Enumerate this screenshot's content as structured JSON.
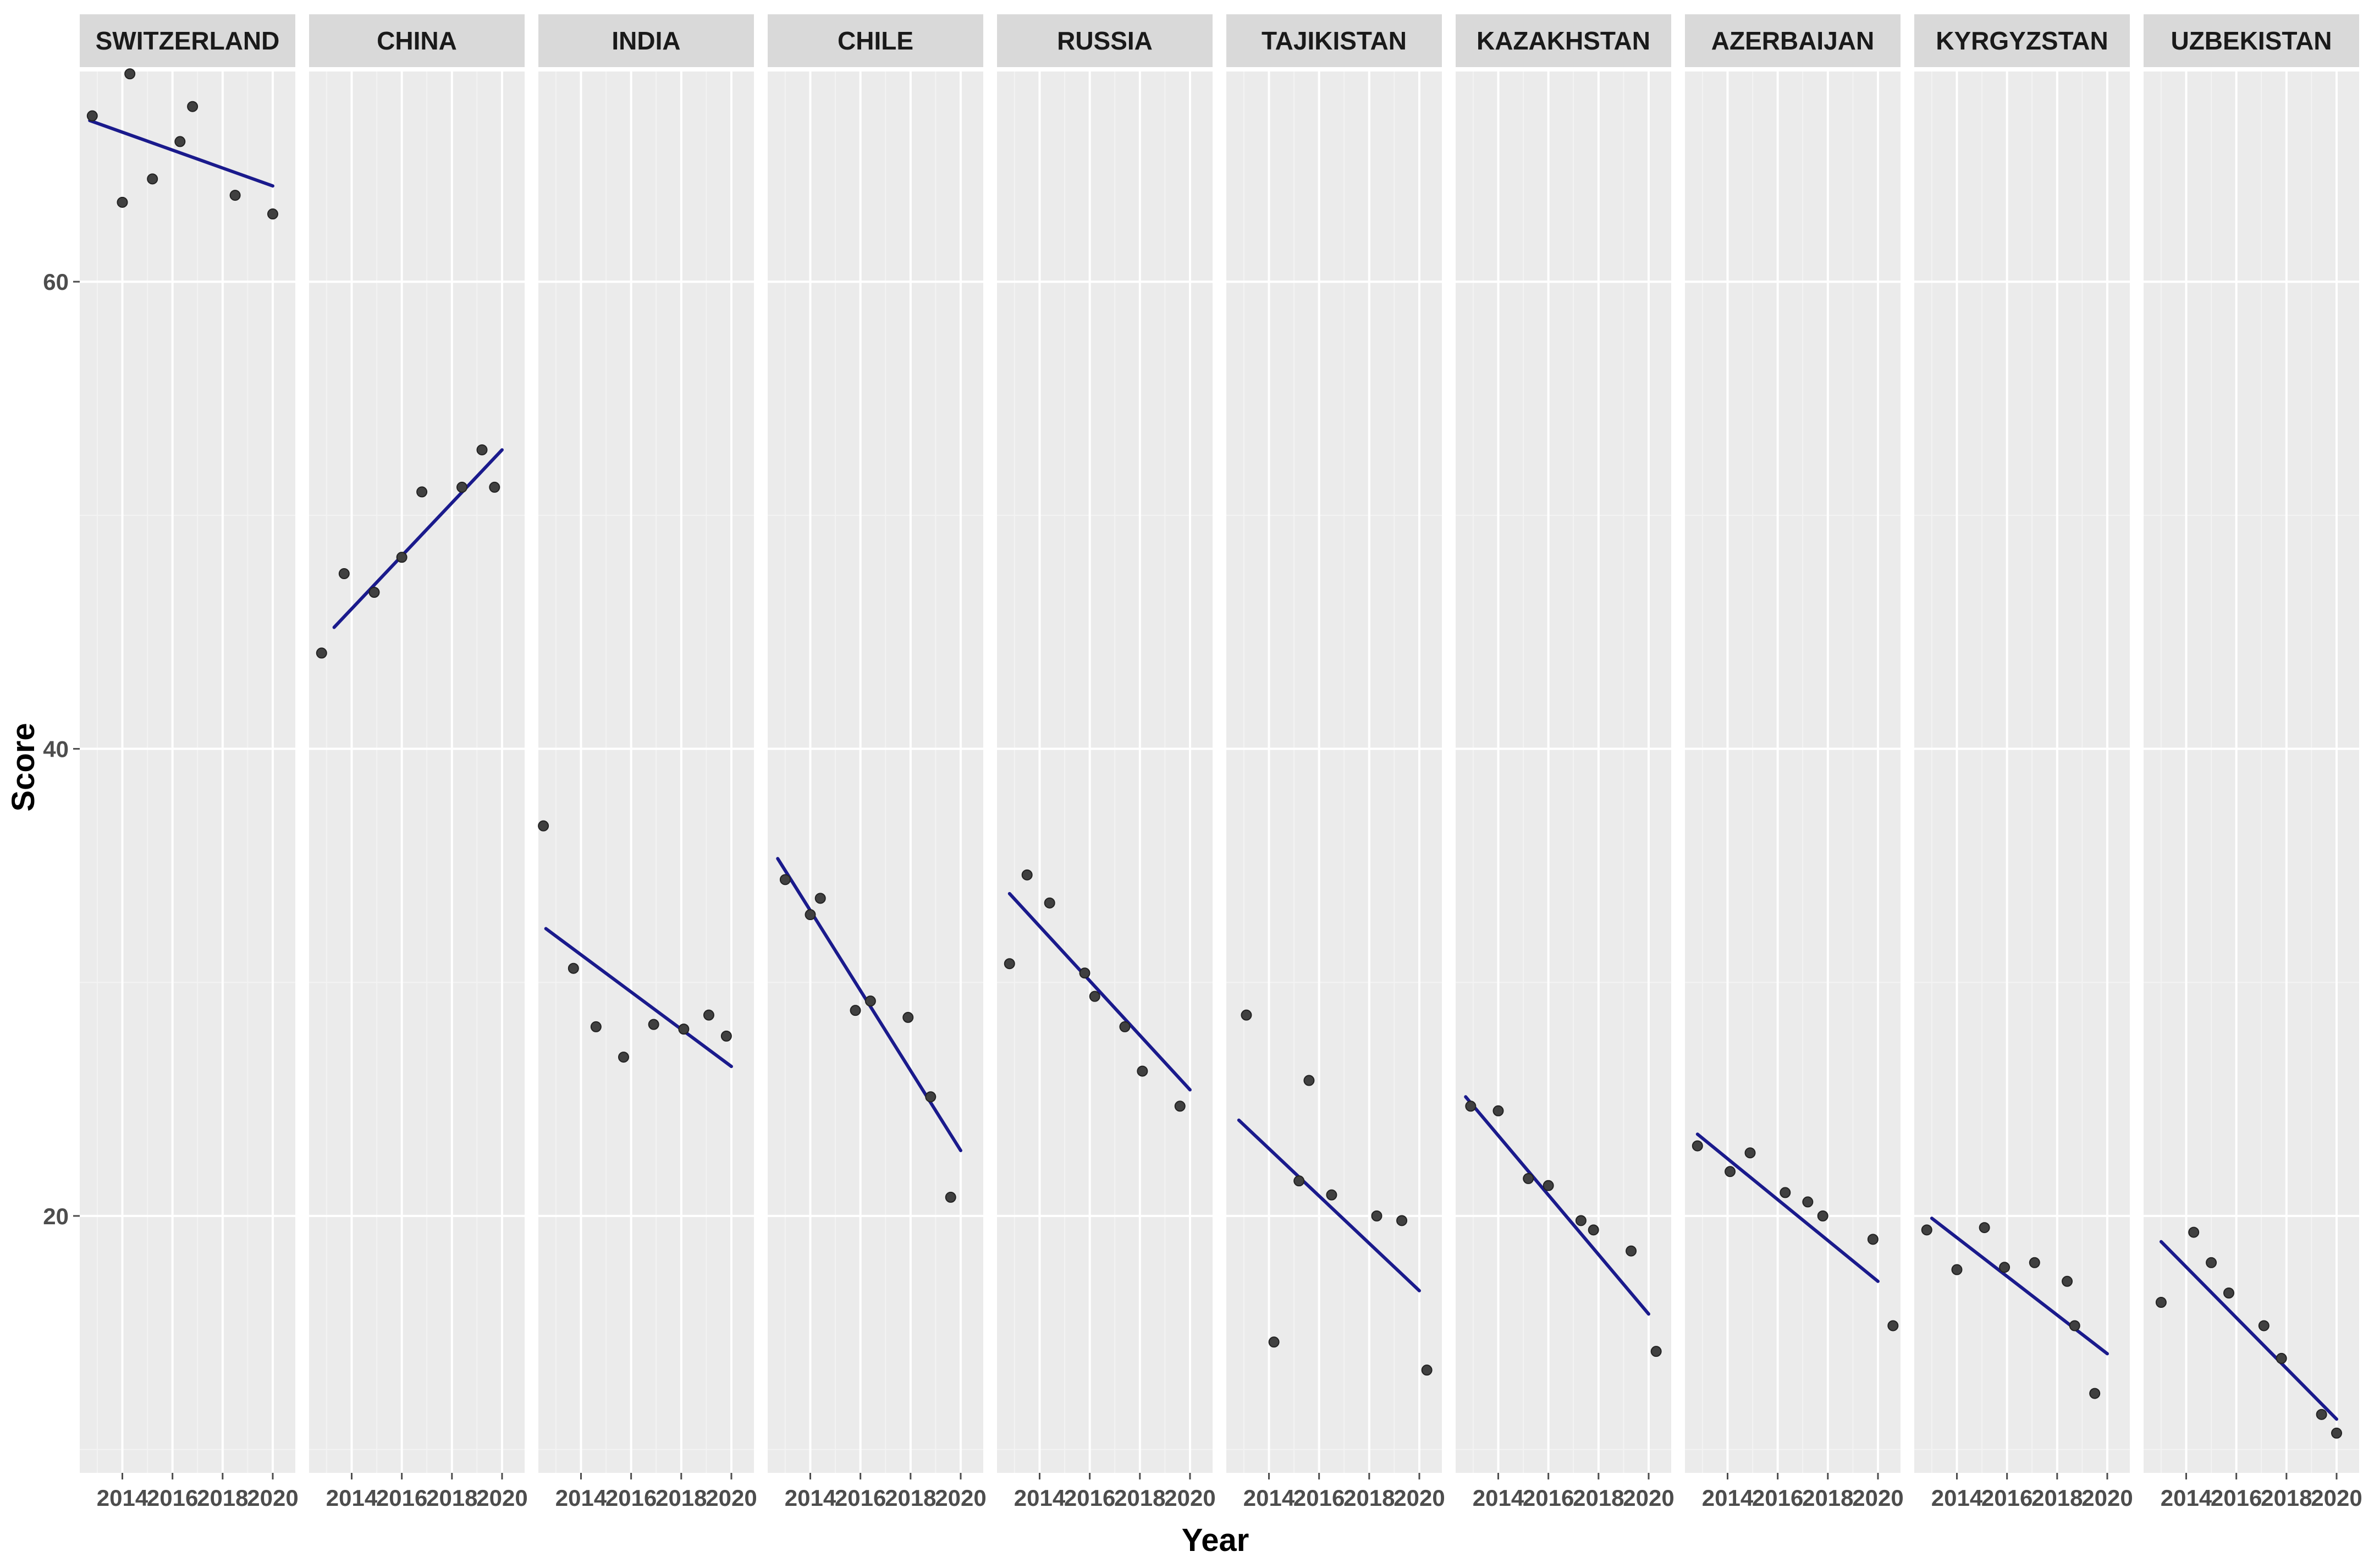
{
  "chart_data": {
    "type": "scatter",
    "facet_by": "country",
    "xlabel": "Year",
    "ylabel": "Score",
    "x_ticks": [
      2014,
      2016,
      2018,
      2020
    ],
    "y_ticks": [
      20,
      40,
      60
    ],
    "xlim": [
      2012.3,
      2020.9
    ],
    "ylim": [
      9.0,
      69.0
    ],
    "grid": true,
    "trend_line": "linear fit",
    "colors": {
      "panel_bg": "#ebebeb",
      "strip_bg": "#d9d9d9",
      "grid_major": "#ffffff",
      "grid_minor": "#f3f3f3",
      "points": "#404040",
      "fit_line": "#1a1a8c"
    },
    "panels": [
      {
        "name": "SWITZERLAND",
        "x": [
          2012.8,
          2014.0,
          2014.3,
          2015.2,
          2016.3,
          2016.8,
          2018.5,
          2020.0
        ],
        "y": [
          67.1,
          63.4,
          68.9,
          64.4,
          66.0,
          67.5,
          63.7,
          62.9
        ],
        "fit": [
          [
            2012.7,
            66.9
          ],
          [
            2020.0,
            64.1
          ]
        ]
      },
      {
        "name": "CHINA",
        "x": [
          2012.8,
          2013.7,
          2014.9,
          2016.0,
          2016.8,
          2018.4,
          2019.2,
          2019.7
        ],
        "y": [
          44.1,
          47.5,
          46.7,
          48.2,
          51.0,
          51.2,
          52.8,
          51.2
        ],
        "fit": [
          [
            2013.3,
            45.2
          ],
          [
            2020.0,
            52.8
          ]
        ]
      },
      {
        "name": "INDIA",
        "x": [
          2012.5,
          2013.7,
          2014.6,
          2015.7,
          2016.9,
          2018.1,
          2019.1,
          2019.8
        ],
        "y": [
          36.7,
          30.6,
          28.1,
          26.8,
          28.2,
          28.0,
          28.6,
          27.7
        ],
        "fit": [
          [
            2012.6,
            32.3
          ],
          [
            2020.0,
            26.4
          ]
        ]
      },
      {
        "name": "CHILE",
        "x": [
          2013.0,
          2014.0,
          2014.4,
          2015.8,
          2016.4,
          2017.9,
          2018.8,
          2019.6
        ],
        "y": [
          34.4,
          32.9,
          33.6,
          28.8,
          29.2,
          28.5,
          25.1,
          20.8
        ],
        "fit": [
          [
            2012.7,
            35.3
          ],
          [
            2020.0,
            22.8
          ]
        ]
      },
      {
        "name": "RUSSIA",
        "x": [
          2012.8,
          2013.5,
          2014.4,
          2015.8,
          2016.2,
          2017.4,
          2018.1,
          2019.6
        ],
        "y": [
          30.8,
          34.6,
          33.4,
          30.4,
          29.4,
          28.1,
          26.2,
          24.7
        ],
        "fit": [
          [
            2012.8,
            33.8
          ],
          [
            2020.0,
            25.4
          ]
        ]
      },
      {
        "name": "TAJIKISTAN",
        "x": [
          2013.1,
          2014.2,
          2015.2,
          2015.6,
          2016.5,
          2018.3,
          2019.3,
          2020.3
        ],
        "y": [
          28.6,
          14.6,
          21.5,
          25.8,
          20.9,
          20.0,
          19.8,
          13.4
        ],
        "fit": [
          [
            2012.8,
            24.1
          ],
          [
            2020.0,
            16.8
          ]
        ]
      },
      {
        "name": "KAZAKHSTAN",
        "x": [
          2012.9,
          2014.0,
          2015.2,
          2016.0,
          2017.3,
          2017.8,
          2019.3,
          2020.3
        ],
        "y": [
          24.7,
          24.5,
          21.6,
          21.3,
          19.8,
          19.4,
          18.5,
          14.2
        ],
        "fit": [
          [
            2012.7,
            25.1
          ],
          [
            2020.0,
            15.8
          ]
        ]
      },
      {
        "name": "AZERBAIJAN",
        "x": [
          2012.8,
          2014.1,
          2014.9,
          2016.3,
          2017.2,
          2017.8,
          2019.8,
          2020.6
        ],
        "y": [
          23.0,
          21.9,
          22.7,
          21.0,
          20.6,
          20.0,
          19.0,
          15.3
        ],
        "fit": [
          [
            2012.8,
            23.5
          ],
          [
            2020.0,
            17.2
          ]
        ]
      },
      {
        "name": "KYRGYZSTAN",
        "x": [
          2012.8,
          2014.0,
          2015.1,
          2015.9,
          2017.1,
          2018.4,
          2018.7,
          2019.5
        ],
        "y": [
          19.4,
          17.7,
          19.5,
          17.8,
          18.0,
          17.2,
          15.3,
          12.4
        ],
        "fit": [
          [
            2013.0,
            19.9
          ],
          [
            2020.0,
            14.1
          ]
        ]
      },
      {
        "name": "UZBEKISTAN",
        "x": [
          2013.0,
          2014.3,
          2015.0,
          2015.7,
          2017.1,
          2017.8,
          2019.4,
          2020.0
        ],
        "y": [
          16.3,
          19.3,
          18.0,
          16.7,
          15.3,
          13.9,
          11.5,
          10.7
        ],
        "fit": [
          [
            2013.0,
            18.9
          ],
          [
            2020.0,
            11.3
          ]
        ]
      }
    ]
  }
}
